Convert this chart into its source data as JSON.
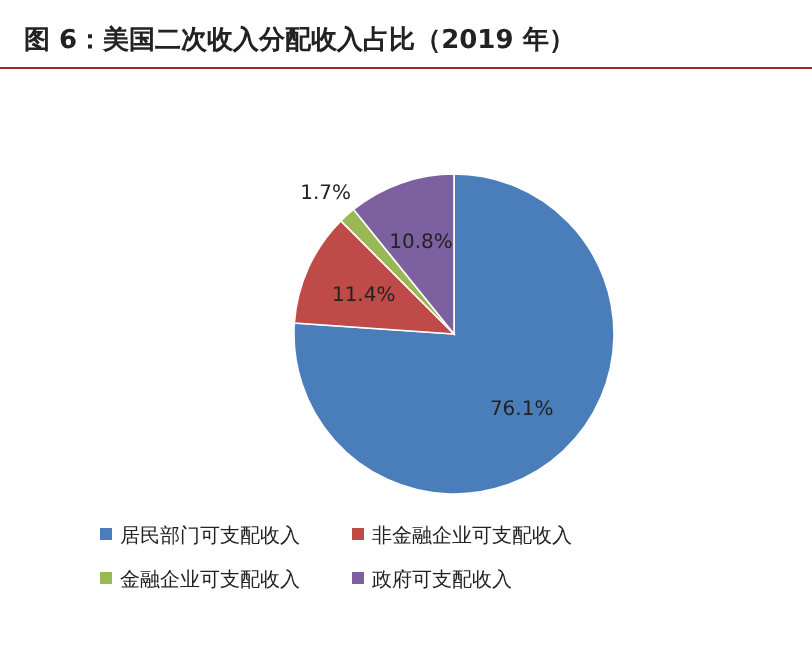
{
  "chart_data": {
    "type": "pie",
    "title": "图 6：美国二次收入分配收入占比（2019 年）",
    "categories": [
      "居民部门可支配收入",
      "非金融企业可支配收入",
      "金融企业可支配收入",
      "政府可支配收入"
    ],
    "values": [
      76.1,
      11.4,
      1.7,
      10.8
    ],
    "value_labels": [
      "76.1%",
      "11.4%",
      "1.7%",
      "10.8%"
    ],
    "colors": [
      "#4a7ebb",
      "#be4b48",
      "#98b954",
      "#7d60a0"
    ],
    "legend": "bottom"
  }
}
